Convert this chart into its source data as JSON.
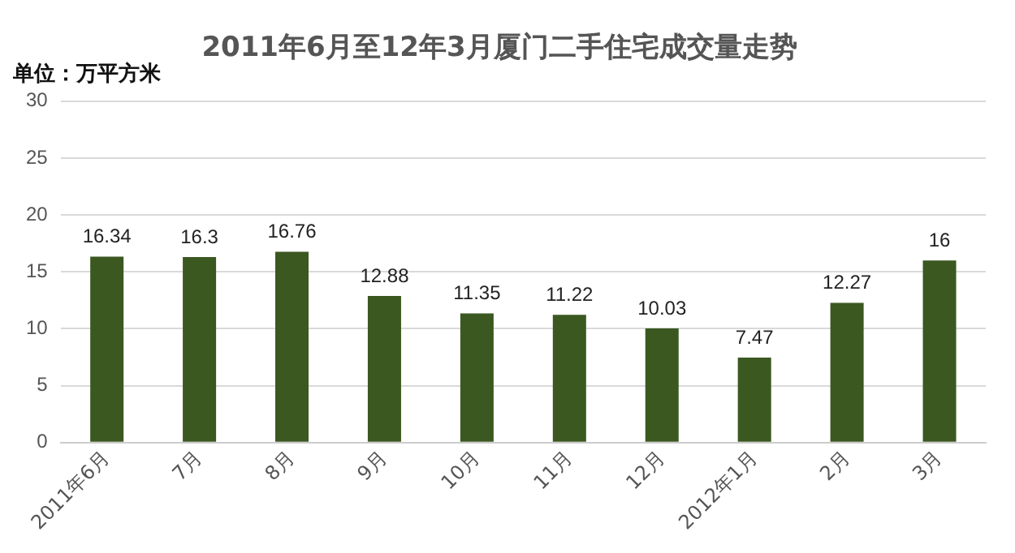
{
  "chart_data": {
    "type": "bar",
    "title": "2011年6月至12年3月厦门二手住宅成交量走势",
    "ylabel": "单位：万平方米",
    "categories": [
      "2011年6月",
      "7月",
      "8月",
      "9月",
      "10月",
      "11月",
      "12月",
      "2012年1月",
      "2月",
      "3月"
    ],
    "values": [
      16.34,
      16.3,
      16.76,
      12.88,
      11.35,
      11.22,
      10.03,
      7.47,
      12.27,
      16
    ],
    "color": "#3b5820",
    "ylim": [
      0,
      30
    ],
    "yticks": [
      0,
      5,
      10,
      15,
      20,
      25,
      30
    ],
    "grid": "y",
    "data_labels": true
  }
}
